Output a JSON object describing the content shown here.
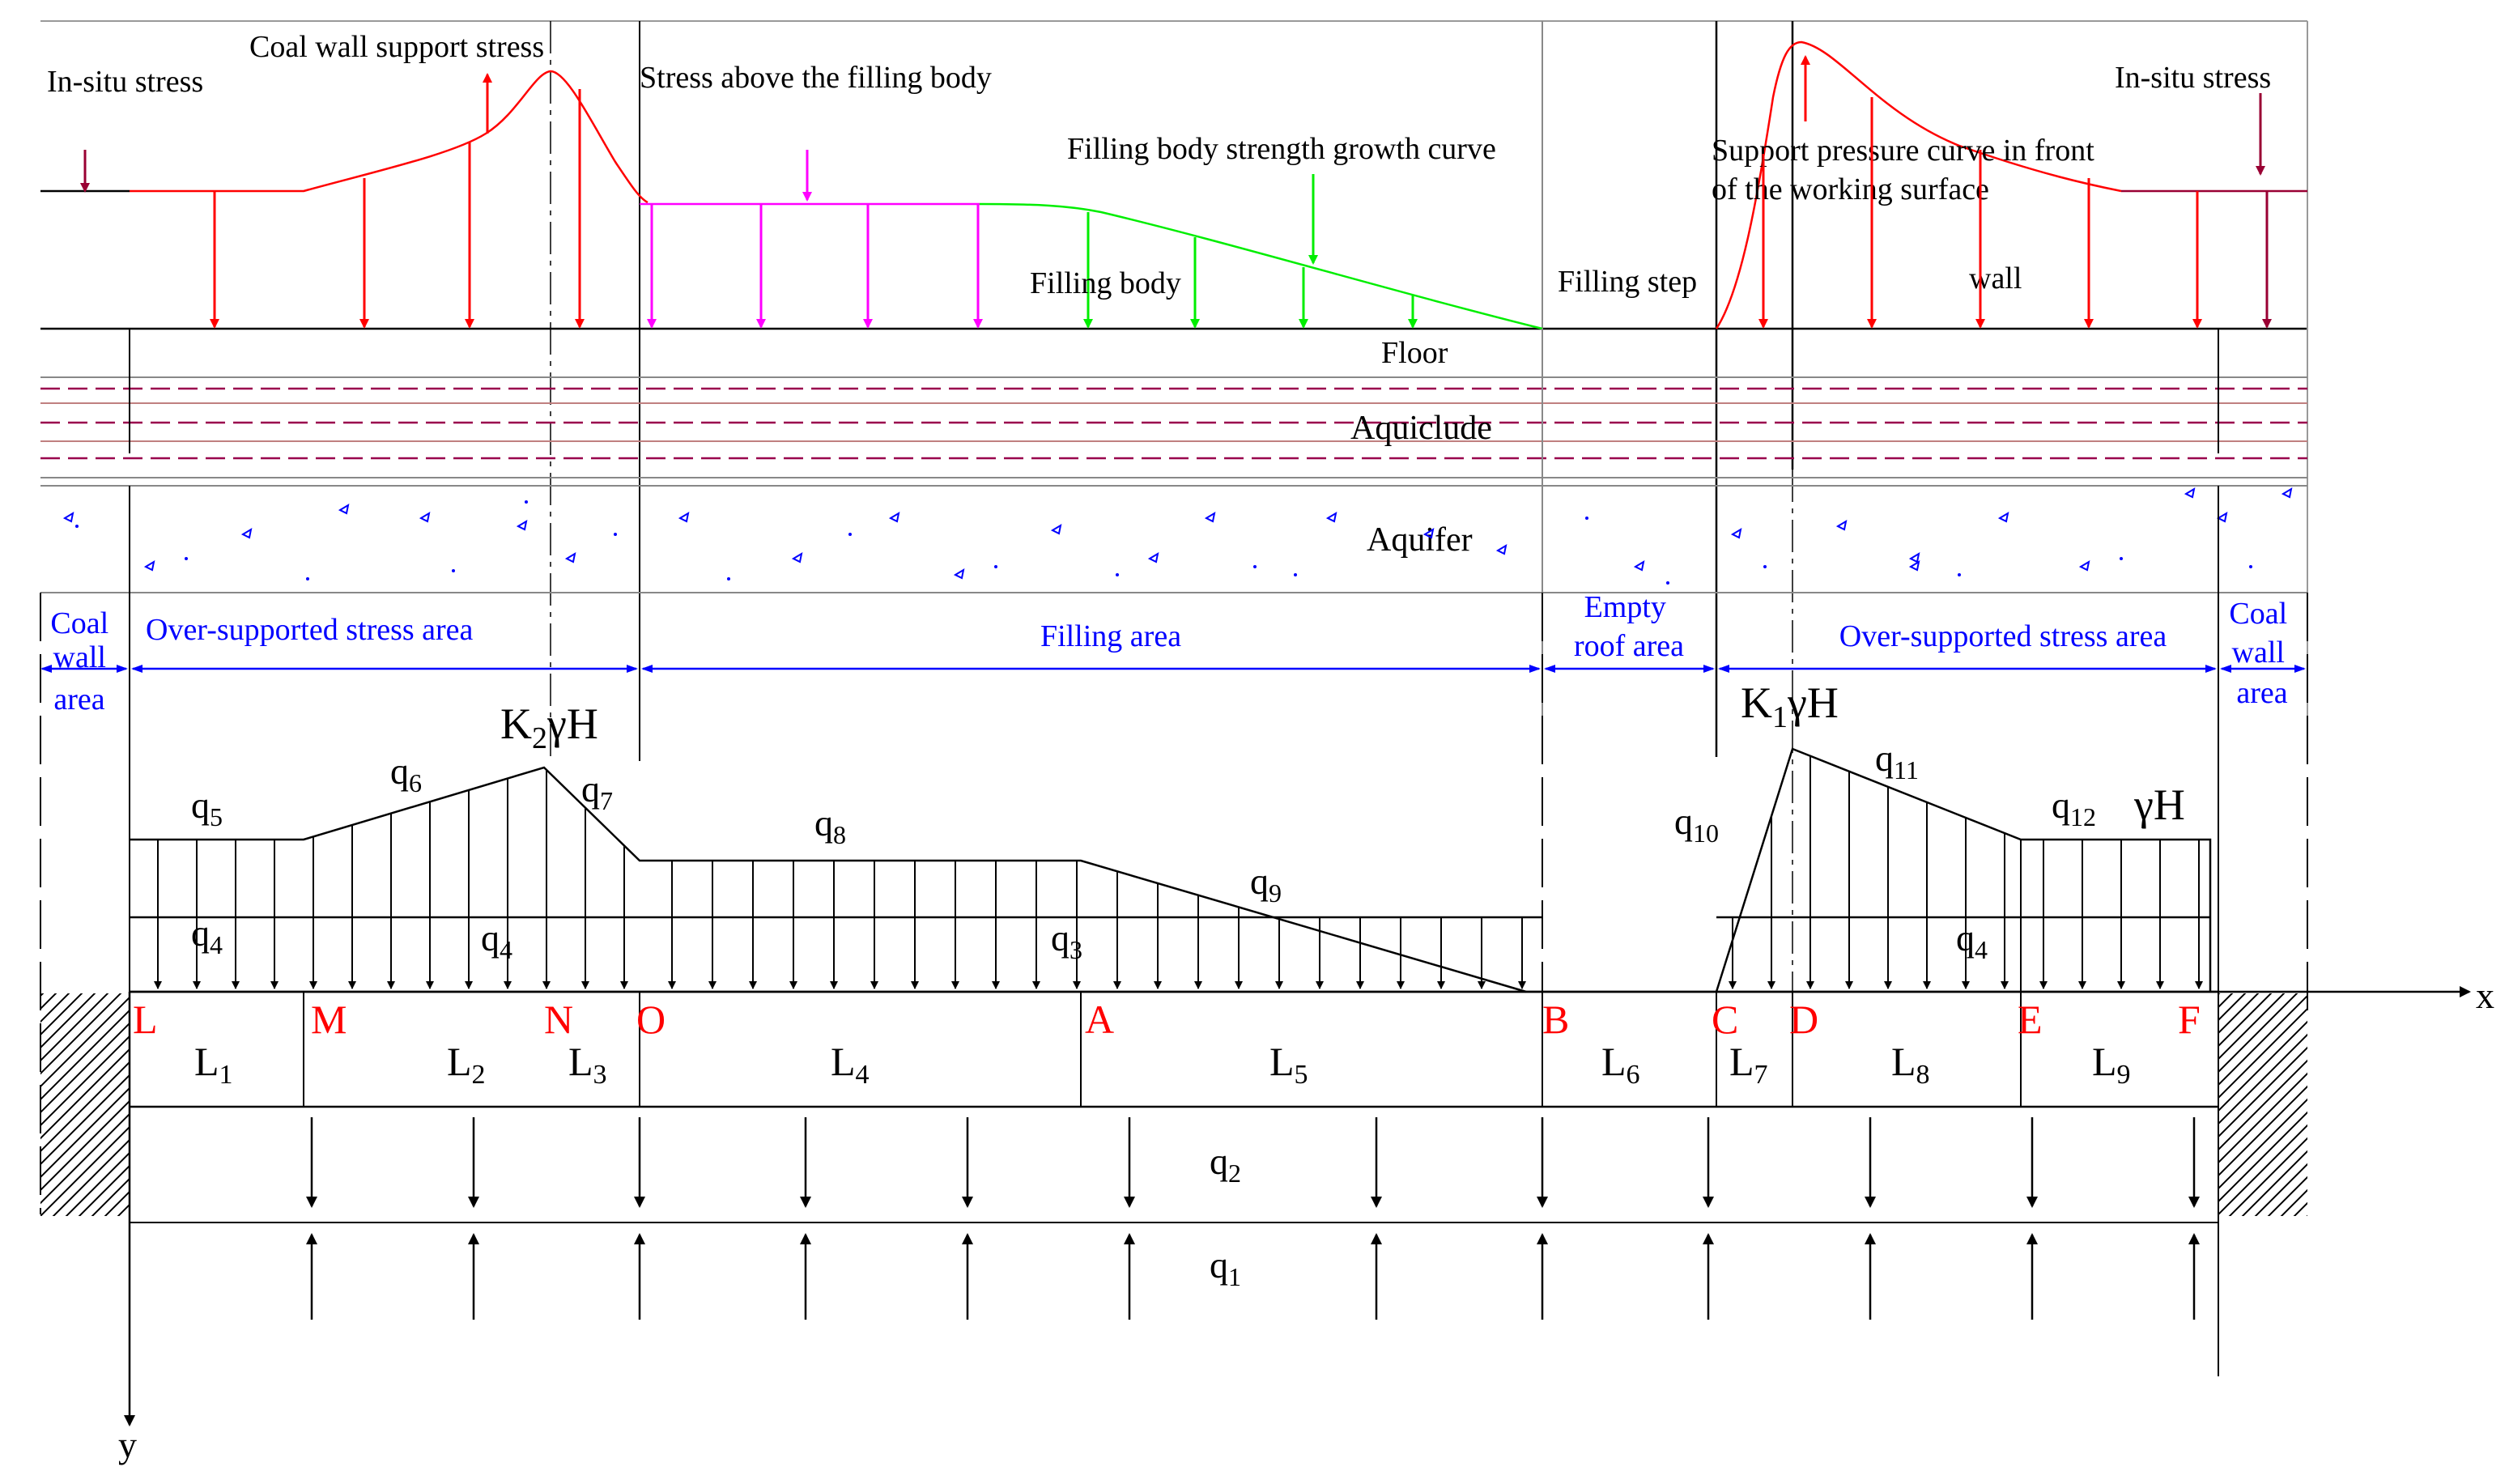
{
  "colors": {
    "line": "#000000",
    "red": "#ff0000",
    "dark_red": "#990033",
    "magenta": "#ff00ff",
    "green": "#00ee00",
    "blue": "#0000ff",
    "dashed": "#99004d"
  },
  "stress_labels": {
    "insitu_left": "In-situ stress",
    "coal_wall_support": "Coal wall support stress",
    "above_filling": "Stress above the filling body",
    "growth_curve": "Filling body strength growth curve",
    "filling_body": "Filling body",
    "filling_step": "Filling step",
    "support_pressure_1": "Support pressure curve in front",
    "support_pressure_2": "of the working surface",
    "wall": "wall",
    "insitu_right": "In-situ stress"
  },
  "strata": {
    "floor": "Floor",
    "aquiclude": "Aquiclude",
    "aquifer": "Aquifer"
  },
  "areas": {
    "coal_wall_left": [
      "Coal",
      "wall",
      "area"
    ],
    "over_supported_left": "Over-supported stress area",
    "filling": "Filling area",
    "empty_roof": [
      "Empty",
      "roof area"
    ],
    "over_supported_right": "Over-supported stress area",
    "coal_wall_right": [
      "Coal",
      "wall",
      "area"
    ]
  },
  "load_labels": {
    "k2": "K",
    "k2_sub": "2",
    "k2_tail": "γH",
    "k1": "K",
    "k1_sub": "1",
    "k1_tail": "γH",
    "gamma_h": "γH",
    "q5": "q",
    "q5_sub": "5",
    "q6": "q",
    "q6_sub": "6",
    "q7": "q",
    "q7_sub": "7",
    "q8": "q",
    "q8_sub": "8",
    "q9": "q",
    "q9_sub": "9",
    "q10": "q",
    "q10_sub": "10",
    "q11": "q",
    "q11_sub": "11",
    "q12": "q",
    "q12_sub": "12",
    "q4a": "q",
    "q4a_sub": "4",
    "q4b": "q",
    "q4b_sub": "4",
    "q3": "q",
    "q3_sub": "3",
    "q4c": "q",
    "q4c_sub": "4",
    "q2": "q",
    "q2_sub": "2",
    "q1": "q",
    "q1_sub": "1"
  },
  "points": [
    "L",
    "M",
    "N",
    "O",
    "A",
    "B",
    "C",
    "D",
    "E",
    "F"
  ],
  "segments": [
    {
      "l": "L",
      "s": "1"
    },
    {
      "l": "L",
      "s": "2"
    },
    {
      "l": "L",
      "s": "3"
    },
    {
      "l": "L",
      "s": "4"
    },
    {
      "l": "L",
      "s": "5"
    },
    {
      "l": "L",
      "s": "6"
    },
    {
      "l": "L",
      "s": "7"
    },
    {
      "l": "L",
      "s": "8"
    },
    {
      "l": "L",
      "s": "9"
    }
  ],
  "axes": {
    "x": "x",
    "y": "y"
  }
}
